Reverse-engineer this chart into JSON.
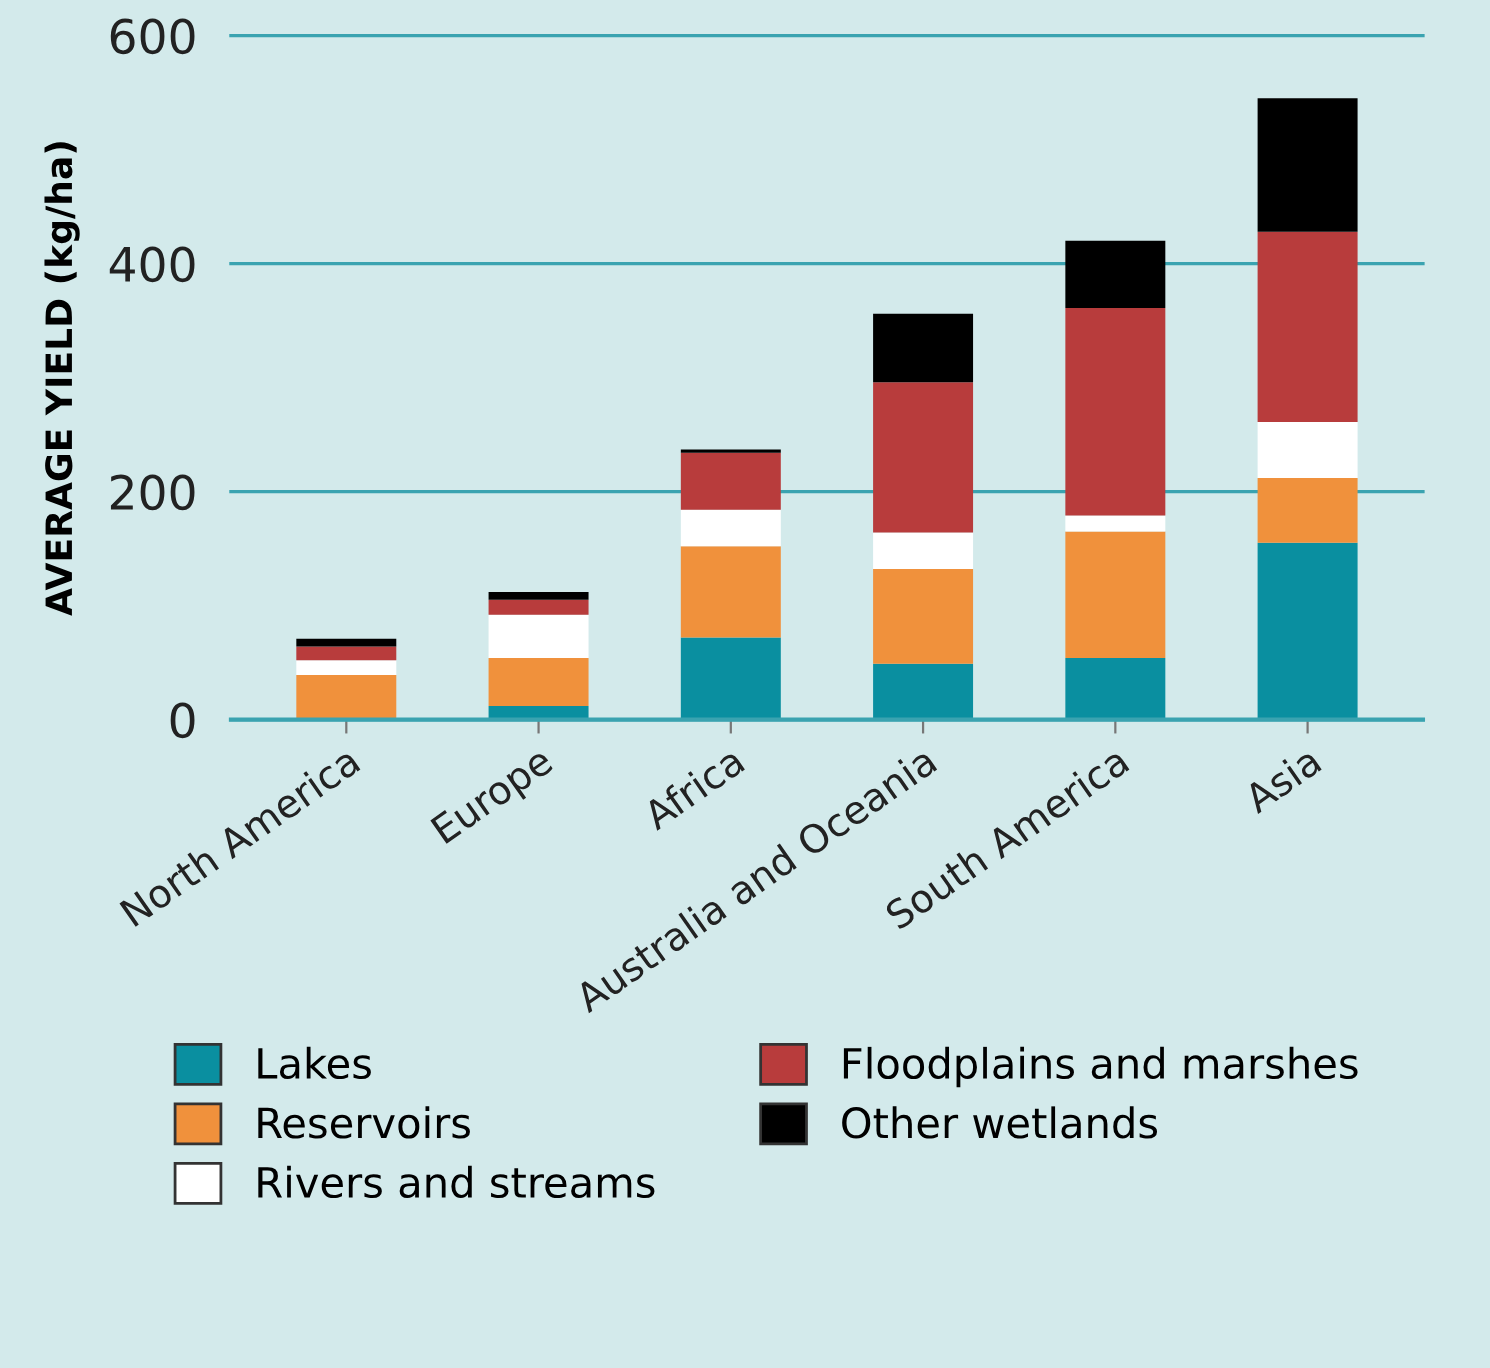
{
  "chart_data": {
    "type": "bar",
    "stacked": true,
    "ylabel": "AVERAGE YIELD (kg/ha)",
    "categories": [
      "North America",
      "Europe",
      "Africa",
      "Australia and Oceania",
      "South America",
      "Asia"
    ],
    "series": [
      {
        "name": "Lakes",
        "color": "#0a8fa0",
        "values": [
          0,
          12,
          72,
          49,
          54,
          155
        ]
      },
      {
        "name": "Reservoirs",
        "color": "#f0913c",
        "values": [
          39,
          42,
          80,
          83,
          111,
          57
        ]
      },
      {
        "name": "Rivers and streams",
        "color": "#ffffff",
        "values": [
          13,
          38,
          32,
          32,
          14,
          49
        ]
      },
      {
        "name": "Floodplains and marshes",
        "color": "#b83c3c",
        "values": [
          12,
          13,
          50,
          132,
          182,
          167
        ]
      },
      {
        "name": "Other wetlands",
        "color": "#000000",
        "values": [
          7,
          7,
          3,
          60,
          59,
          117
        ]
      }
    ],
    "ylim": [
      0,
      600
    ],
    "yticks": [
      0,
      200,
      400,
      600
    ],
    "grid": "y",
    "legend": "bottom"
  }
}
